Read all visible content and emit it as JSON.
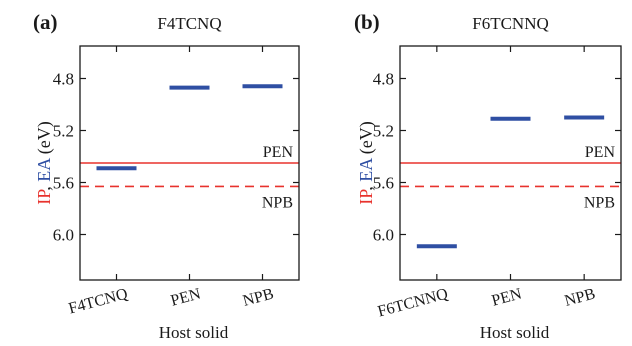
{
  "chart_data": [
    {
      "type": "scatter",
      "panel_label": "(a)",
      "title": "F4TCNQ",
      "xlabel": "Host solid",
      "ylabel": {
        "ip": "IP",
        "sep": ", ",
        "ea": "EA",
        "unit": " (eV)"
      },
      "ylabel_colors": {
        "ip": "#e8322d",
        "ea": "#2f4fa3",
        "rest": "#1a1a1a"
      },
      "y_inverted": true,
      "ylim": [
        6.35,
        4.55
      ],
      "yticks": [
        4.8,
        5.2,
        5.6,
        6.0
      ],
      "ytick_labels": [
        "4.8",
        "5.2",
        "5.6",
        "6.0"
      ],
      "categories": [
        "F4TCNQ",
        "PEN",
        "NPB"
      ],
      "series": [
        {
          "values": [
            5.49,
            4.87,
            4.86
          ],
          "color": "#2f4fa3"
        }
      ],
      "reference_lines": [
        {
          "label": "PEN",
          "value": 5.45,
          "style": "solid",
          "color": "#e8322d"
        },
        {
          "label": "NPB",
          "value": 5.63,
          "style": "dashed",
          "color": "#e8322d"
        }
      ],
      "grid": false
    },
    {
      "type": "scatter",
      "panel_label": "(b)",
      "title": "F6TCNNQ",
      "xlabel": "Host solid",
      "ylabel": {
        "ip": "IP",
        "sep": ", ",
        "ea": "EA",
        "unit": " (eV)"
      },
      "ylabel_colors": {
        "ip": "#e8322d",
        "ea": "#2f4fa3",
        "rest": "#1a1a1a"
      },
      "y_inverted": true,
      "ylim": [
        6.35,
        4.55
      ],
      "yticks": [
        4.8,
        5.2,
        5.6,
        6.0
      ],
      "ytick_labels": [
        "4.8",
        "5.2",
        "5.6",
        "6.0"
      ],
      "categories": [
        "F6TCNNQ",
        "PEN",
        "NPB"
      ],
      "series": [
        {
          "values": [
            6.09,
            5.11,
            5.1
          ],
          "color": "#2f4fa3"
        }
      ],
      "reference_lines": [
        {
          "label": "PEN",
          "value": 5.45,
          "style": "solid",
          "color": "#e8322d"
        },
        {
          "label": "NPB",
          "value": 5.63,
          "style": "dashed",
          "color": "#e8322d"
        }
      ],
      "grid": false
    }
  ]
}
